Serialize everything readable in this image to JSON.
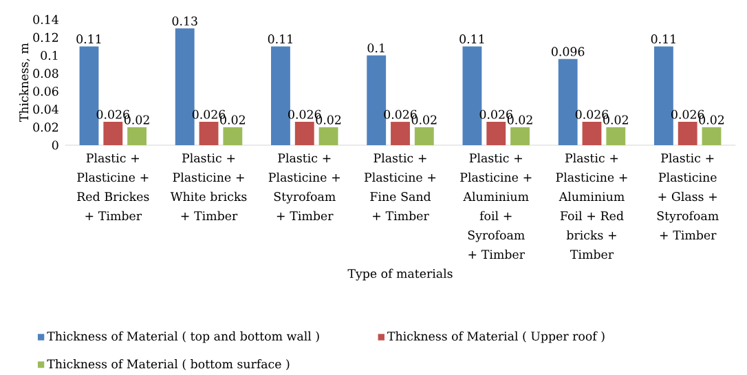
{
  "chart_data": {
    "type": "bar",
    "xlabel": "Type of materials",
    "ylabel": "Thickness, m",
    "categories": [
      "Plastic + Plasticine + Red Brickes + Timber",
      "Plastic + Plasticine + White bricks + Timber",
      "Plastic + Plasticine + Styrofoam + Timber",
      "Plastic + Plasticine + Fine Sand + Timber",
      "Plastic + Plasticine + Aluminium foil + Syrofoam + Timber",
      "Plastic + Plasticine + Aluminium Foil + Red bricks + Timber",
      "Plastic + Plasticine + Glass + Styrofoam + Timber"
    ],
    "series": [
      {
        "name": "Thickness of Material ( top and bottom wall )",
        "color": "#4f81bd",
        "values": [
          0.11,
          0.13,
          0.11,
          0.1,
          0.11,
          0.096,
          0.11
        ]
      },
      {
        "name": "Thickness of Material ( Upper roof )",
        "color": "#c0504d",
        "values": [
          0.026,
          0.026,
          0.026,
          0.026,
          0.026,
          0.026,
          0.026
        ]
      },
      {
        "name": "Thickness of Material ( bottom surface )",
        "color": "#9bbb59",
        "values": [
          0.02,
          0.02,
          0.02,
          0.02,
          0.02,
          0.02,
          0.02
        ]
      }
    ],
    "ylim": [
      0,
      0.14
    ],
    "yticks": [
      0,
      0.02,
      0.04,
      0.06,
      0.08,
      0.1,
      0.12,
      0.14
    ],
    "data_labels": true,
    "legend": "bottom",
    "grid": false
  }
}
